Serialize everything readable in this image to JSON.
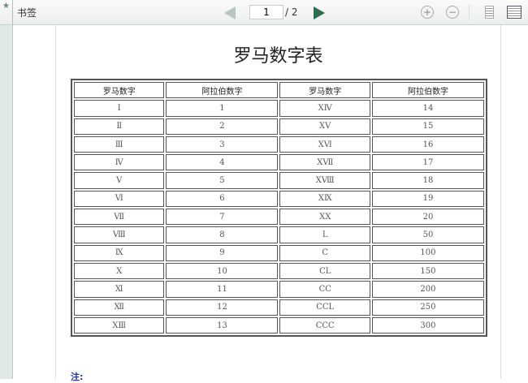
{
  "toolbar": {
    "bookmark_label": "书签",
    "page_current": "1",
    "page_total": "/ 2",
    "zoom_in": "+",
    "zoom_out": "−"
  },
  "document": {
    "title": "罗马数字表",
    "note": "注:",
    "headers": [
      "罗马数字",
      "阿拉伯数字",
      "罗马数字",
      "阿拉伯数字"
    ],
    "rows": [
      [
        "Ⅰ",
        "1",
        "ⅩⅣ",
        "14"
      ],
      [
        "Ⅱ",
        "2",
        "ⅩⅤ",
        "15"
      ],
      [
        "Ⅲ",
        "3",
        "ⅩⅥ",
        "16"
      ],
      [
        "Ⅳ",
        "4",
        "ⅩⅦ",
        "17"
      ],
      [
        "Ⅴ",
        "5",
        "ⅩⅧ",
        "18"
      ],
      [
        "Ⅵ",
        "6",
        "ⅩⅨ",
        "19"
      ],
      [
        "Ⅶ",
        "7",
        "ⅩⅩ",
        "20"
      ],
      [
        "Ⅷ",
        "8",
        "L",
        "50"
      ],
      [
        "Ⅸ",
        "9",
        "C",
        "100"
      ],
      [
        "Ⅹ",
        "10",
        "CL",
        "150"
      ],
      [
        "Ⅺ",
        "11",
        "CC",
        "200"
      ],
      [
        "Ⅻ",
        "12",
        "CCL",
        "250"
      ],
      [
        "ⅩⅢ",
        "13",
        "CCC",
        "300"
      ]
    ]
  }
}
